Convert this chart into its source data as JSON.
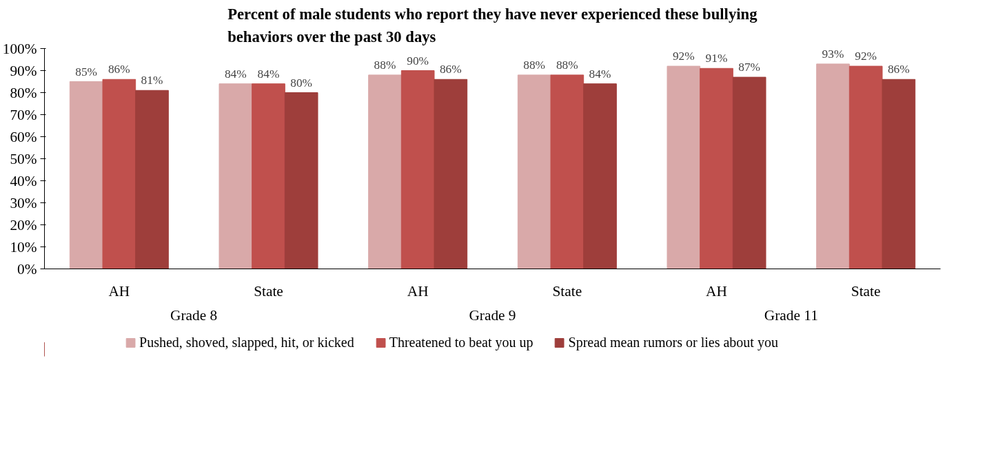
{
  "chart_data": {
    "type": "bar",
    "title": "Percent of male students who report they have never experienced these bullying behaviors over the past 30 days",
    "categories": [
      "AH",
      "State",
      "AH",
      "State",
      "AH",
      "State"
    ],
    "annotations": [
      "Grade 8",
      "Grade 9",
      "Grade 11"
    ],
    "series": [
      {
        "name": "Pushed, shoved, slapped, hit, or kicked",
        "color": "#d9a9a9",
        "values": [
          85,
          84,
          88,
          88,
          92,
          93
        ],
        "value_labels": [
          "85%",
          "84%",
          "88%",
          "88%",
          "92%",
          "93%"
        ]
      },
      {
        "name": "Threatened to beat you up",
        "color": "#c0504d",
        "values": [
          86,
          84,
          90,
          88,
          91,
          92
        ],
        "value_labels": [
          "86%",
          "84%",
          "90%",
          "88%",
          "91%",
          "92%"
        ]
      },
      {
        "name": "Spread mean rumors or lies about you",
        "color": "#9e3e3b",
        "values": [
          81,
          80,
          86,
          84,
          87,
          86
        ],
        "value_labels": [
          "81%",
          "80%",
          "86%",
          "84%",
          "87%",
          "86%"
        ]
      }
    ],
    "ylim": [
      0,
      100
    ],
    "yticks": [
      {
        "value": 0,
        "label": "0%"
      },
      {
        "value": 10,
        "label": "10%"
      },
      {
        "value": 20,
        "label": "20%"
      },
      {
        "value": 30,
        "label": "30%"
      },
      {
        "value": 40,
        "label": "40%"
      },
      {
        "value": 50,
        "label": "50%"
      },
      {
        "value": 60,
        "label": "60%"
      },
      {
        "value": 70,
        "label": "70%"
      },
      {
        "value": 80,
        "label": "80%"
      },
      {
        "value": 90,
        "label": "90%"
      },
      {
        "value": 100,
        "label": "100%"
      }
    ],
    "grid": false,
    "legend": "bottom"
  }
}
